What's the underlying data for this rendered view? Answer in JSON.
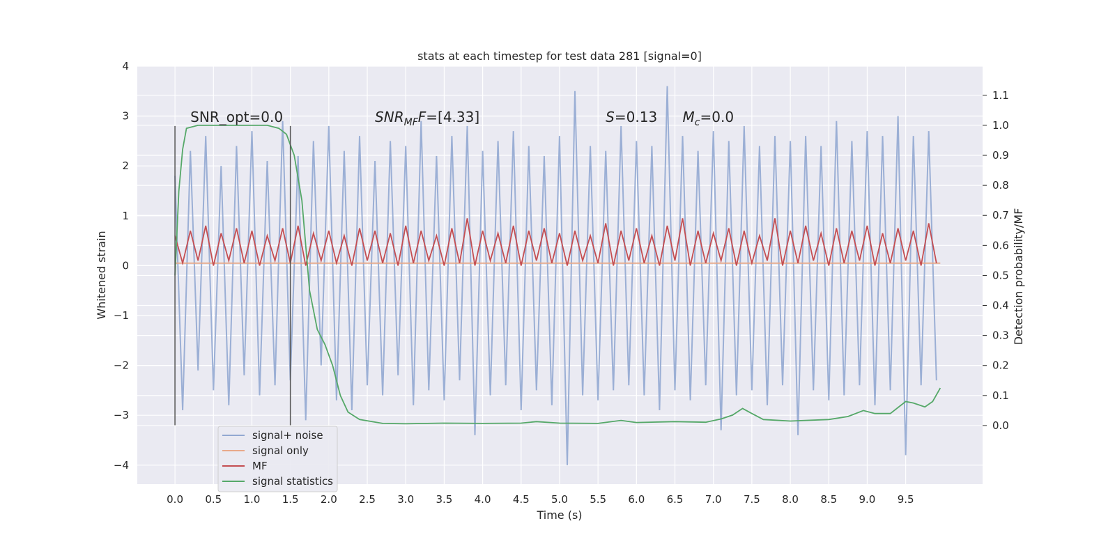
{
  "chart_data": {
    "type": "line",
    "title": "stats at each timestep for test data 281 [signal=0]",
    "xlabel": "Time (s)",
    "ylabel": "Whitened strain",
    "y2label": "Detection probability/MF",
    "xlim": [
      -0.49,
      10.5
    ],
    "ylim": [
      -4.38,
      4.0
    ],
    "y2lim": [
      -0.195,
      1.197
    ],
    "xticks": [
      {
        "value": 0,
        "label": "0.0"
      },
      {
        "value": 0.5,
        "label": "0.5"
      },
      {
        "value": 1,
        "label": "1.0"
      },
      {
        "value": 1.5,
        "label": "1.5"
      },
      {
        "value": 2,
        "label": "2.0"
      },
      {
        "value": 2.5,
        "label": "2.5"
      },
      {
        "value": 3,
        "label": "3.0"
      },
      {
        "value": 3.5,
        "label": "3.5"
      },
      {
        "value": 4,
        "label": "4.0"
      },
      {
        "value": 4.5,
        "label": "4.5"
      },
      {
        "value": 5,
        "label": "5.0"
      },
      {
        "value": 5.5,
        "label": "5.5"
      },
      {
        "value": 6,
        "label": "6.0"
      },
      {
        "value": 6.5,
        "label": "6.5"
      },
      {
        "value": 7,
        "label": "7.0"
      },
      {
        "value": 7.5,
        "label": "7.5"
      },
      {
        "value": 8,
        "label": "8.0"
      },
      {
        "value": 8.5,
        "label": "8.5"
      },
      {
        "value": 9,
        "label": "9.0"
      },
      {
        "value": 9.5,
        "label": "9.5"
      }
    ],
    "yticks": [
      {
        "value": -4,
        "label": "−4"
      },
      {
        "value": -3,
        "label": "−3"
      },
      {
        "value": -2,
        "label": "−2"
      },
      {
        "value": -1,
        "label": "−1"
      },
      0,
      1,
      2,
      3,
      4
    ],
    "y2ticks": [
      {
        "value": 0,
        "label": "0.0"
      },
      {
        "value": 0.1,
        "label": "0.1"
      },
      {
        "value": 0.2,
        "label": "0.2"
      },
      {
        "value": 0.3,
        "label": "0.3"
      },
      {
        "value": 0.4,
        "label": "0.4"
      },
      {
        "value": 0.5,
        "label": "0.5"
      },
      {
        "value": 0.6,
        "label": "0.6"
      },
      {
        "value": 0.7,
        "label": "0.7"
      },
      {
        "value": 0.8,
        "label": "0.8"
      },
      {
        "value": 0.9,
        "label": "0.9"
      },
      {
        "value": 1,
        "label": "1.0"
      },
      {
        "value": 1.1,
        "label": "1.1"
      }
    ],
    "grid": true,
    "legend": "lower left",
    "x": [
      0.0,
      0.1,
      0.2,
      0.3,
      0.4,
      0.5,
      0.6,
      0.7,
      0.8,
      0.9,
      1.0,
      1.1,
      1.2,
      1.3,
      1.4,
      1.5,
      1.6,
      1.7,
      1.8,
      1.9,
      2.0,
      2.1,
      2.2,
      2.3,
      2.4,
      2.5,
      2.6,
      2.7,
      2.8,
      2.9,
      3.0,
      3.1,
      3.2,
      3.3,
      3.4,
      3.5,
      3.6,
      3.7,
      3.8,
      3.9,
      4.0,
      4.1,
      4.2,
      4.3,
      4.4,
      4.5,
      4.6,
      4.7,
      4.8,
      4.9,
      5.0,
      5.1,
      5.2,
      5.3,
      5.4,
      5.5,
      5.6,
      5.7,
      5.8,
      5.9,
      6.0,
      6.1,
      6.2,
      6.3,
      6.4,
      6.5,
      6.6,
      6.7,
      6.8,
      6.9,
      7.0,
      7.1,
      7.2,
      7.3,
      7.4,
      7.5,
      7.6,
      7.7,
      7.8,
      7.9,
      8.0,
      8.1,
      8.2,
      8.3,
      8.4,
      8.5,
      8.6,
      8.7,
      8.8,
      8.9,
      9.0,
      9.1,
      9.2,
      9.3,
      9.4,
      9.5,
      9.6,
      9.7,
      9.8,
      9.9
    ],
    "series": [
      {
        "name": "signal+ noise",
        "color": "#92a8d1",
        "values": [
          1.8,
          -2.9,
          2.3,
          -2.1,
          2.6,
          -2.5,
          2.0,
          -2.8,
          2.4,
          -2.2,
          2.7,
          -2.6,
          2.1,
          -2.4,
          2.9,
          -2.3,
          2.2,
          -3.1,
          2.5,
          -2.0,
          2.8,
          -2.7,
          2.3,
          -2.9,
          2.6,
          -2.4,
          2.1,
          -2.6,
          2.5,
          -2.2,
          2.4,
          -2.8,
          2.9,
          -2.5,
          2.2,
          -2.7,
          2.6,
          -2.3,
          2.8,
          -3.4,
          2.3,
          -2.6,
          2.5,
          -2.4,
          2.7,
          -2.9,
          2.4,
          -2.5,
          2.2,
          -2.8,
          2.6,
          -4.0,
          3.5,
          -2.6,
          2.4,
          -2.7,
          2.3,
          -2.5,
          2.8,
          -2.4,
          2.5,
          -2.6,
          2.4,
          -2.9,
          3.6,
          -2.5,
          2.6,
          -2.7,
          2.3,
          -2.4,
          2.7,
          -3.3,
          2.5,
          -2.6,
          2.8,
          -2.5,
          2.4,
          -2.8,
          2.6,
          -2.4,
          2.5,
          -3.4,
          2.6,
          -2.5,
          2.4,
          -2.7,
          2.9,
          -2.6,
          2.5,
          -2.4,
          2.7,
          -2.8,
          2.6,
          -2.5,
          3.0,
          -3.8,
          2.6,
          -2.4,
          2.7,
          -2.3
        ]
      },
      {
        "name": "signal only",
        "color": "#e8a98a",
        "x": [
          0.0,
          9.95
        ],
        "values": [
          0.05,
          0.05
        ]
      },
      {
        "name": "MF",
        "color": "#c44e52",
        "values": [
          0.6,
          0.05,
          0.7,
          0.1,
          0.8,
          0.0,
          0.65,
          0.1,
          0.75,
          0.05,
          0.7,
          0.0,
          0.6,
          0.1,
          0.75,
          0.05,
          0.8,
          0.0,
          0.65,
          0.1,
          0.7,
          0.05,
          0.6,
          0.0,
          0.75,
          0.1,
          0.7,
          0.05,
          0.65,
          0.0,
          0.8,
          0.05,
          0.7,
          0.1,
          0.6,
          0.0,
          0.75,
          0.05,
          0.95,
          0.0,
          0.7,
          0.1,
          0.65,
          0.05,
          0.8,
          0.0,
          0.7,
          0.1,
          0.75,
          0.05,
          0.65,
          0.0,
          0.7,
          0.1,
          0.6,
          0.05,
          0.85,
          0.0,
          0.7,
          0.1,
          0.75,
          0.05,
          0.6,
          0.0,
          0.8,
          0.1,
          0.95,
          0.0,
          0.7,
          0.05,
          0.65,
          0.1,
          0.75,
          0.0,
          0.7,
          0.05,
          0.6,
          0.1,
          0.95,
          0.0,
          0.7,
          0.05,
          0.8,
          0.1,
          0.65,
          0.0,
          0.75,
          0.05,
          0.7,
          0.1,
          0.8,
          0.0,
          0.65,
          0.05,
          0.75,
          0.1,
          0.7,
          0.0,
          0.85,
          0.05
        ]
      },
      {
        "name": "signal statistics",
        "color": "#55a868",
        "axis": "y2",
        "x": [
          0,
          0.05,
          0.1,
          0.15,
          0.3,
          1.2,
          1.35,
          1.45,
          1.55,
          1.65,
          1.75,
          1.85,
          1.95,
          2.05,
          2.15,
          2.25,
          2.4,
          2.7,
          3.0,
          3.5,
          4.0,
          4.5,
          4.7,
          5.0,
          5.5,
          5.8,
          6.0,
          6.5,
          6.9,
          7.1,
          7.25,
          7.38,
          7.5,
          7.65,
          8.0,
          8.5,
          8.75,
          8.95,
          9.1,
          9.3,
          9.5,
          9.6,
          9.75,
          9.85,
          9.95
        ],
        "values": [
          0.5,
          0.78,
          0.92,
          0.99,
          1.0,
          1.0,
          0.99,
          0.97,
          0.9,
          0.75,
          0.45,
          0.32,
          0.27,
          0.2,
          0.1,
          0.045,
          0.02,
          0.007,
          0.006,
          0.008,
          0.007,
          0.008,
          0.013,
          0.008,
          0.007,
          0.017,
          0.01,
          0.013,
          0.011,
          0.022,
          0.035,
          0.057,
          0.04,
          0.02,
          0.015,
          0.02,
          0.03,
          0.05,
          0.04,
          0.04,
          0.08,
          0.075,
          0.062,
          0.08,
          0.125
        ]
      }
    ],
    "vlines": [
      {
        "x": 0,
        "ymin": -3.2,
        "ymax": 2.8,
        "color": "#555555"
      },
      {
        "x": 1.5,
        "ymin": -3.2,
        "ymax": 2.8,
        "color": "#555555"
      }
    ],
    "annotations": [
      {
        "x": 0.2,
        "y": 2.88,
        "parts": [
          {
            "t": "SNR_opt=0.0"
          }
        ]
      },
      {
        "x": 2.6,
        "y": 2.88,
        "parts": [
          {
            "t": "SNR",
            "italic": true
          },
          {
            "t": "MF",
            "italic": true,
            "sub": true
          },
          {
            "t": "F",
            "italic": true
          },
          {
            "t": "=[4.33]"
          }
        ]
      },
      {
        "x": 5.6,
        "y": 2.88,
        "parts": [
          {
            "t": "S",
            "italic": true
          },
          {
            "t": "=0.13"
          }
        ]
      },
      {
        "x": 6.6,
        "y": 2.88,
        "parts": [
          {
            "t": "M",
            "italic": true
          },
          {
            "t": "c",
            "italic": true,
            "sub": true
          },
          {
            "t": "=0.0"
          }
        ]
      }
    ]
  }
}
